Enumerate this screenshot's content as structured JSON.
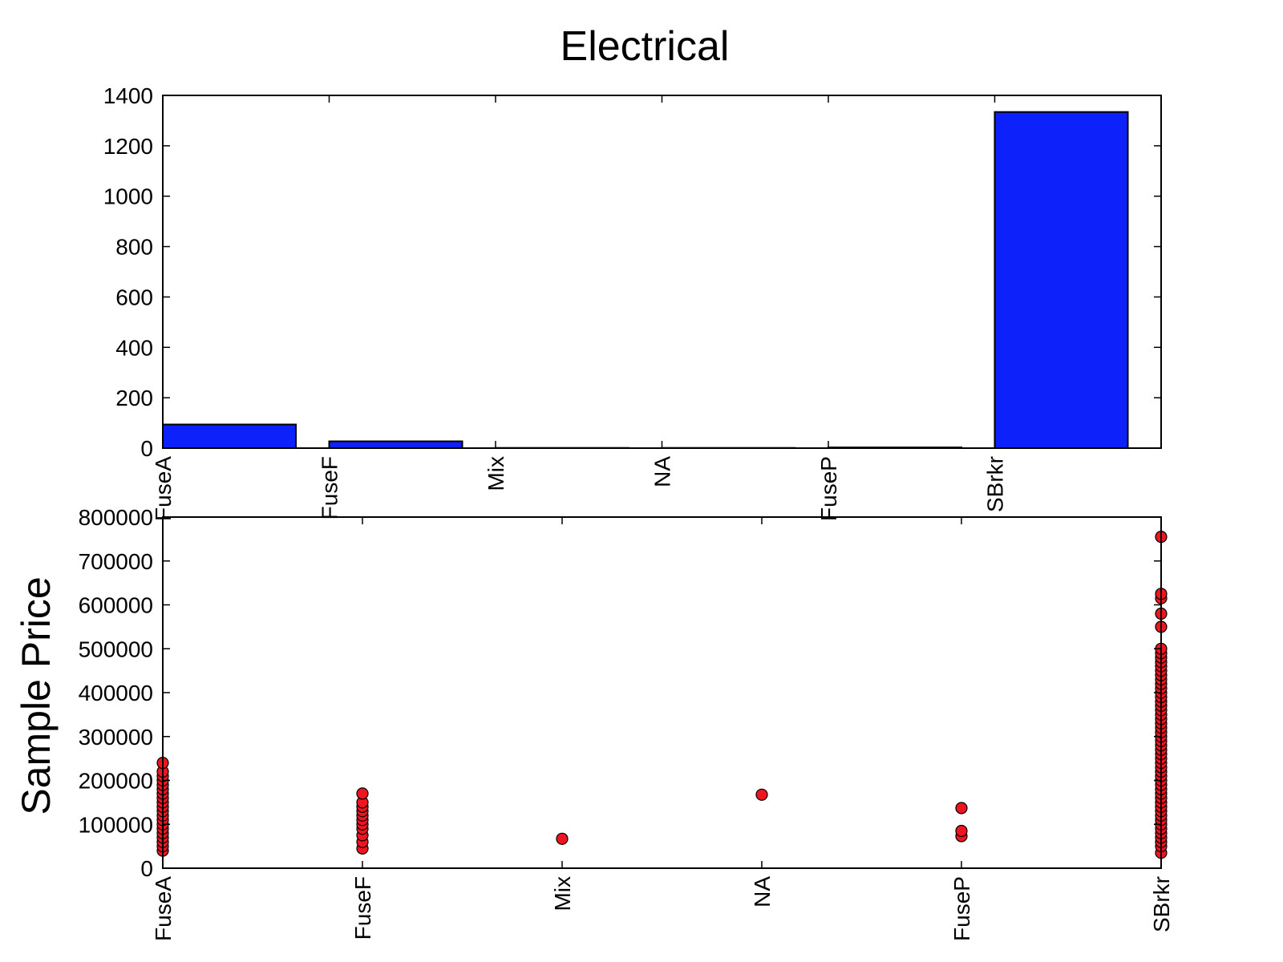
{
  "title": "Electrical",
  "colors": {
    "bar_fill": "#0d22fb",
    "point_fill": "#ef1520",
    "stroke": "#000000"
  },
  "chart_data": [
    {
      "type": "bar",
      "categories": [
        "FuseA",
        "FuseF",
        "Mix",
        "NA",
        "FuseP",
        "SBrkr"
      ],
      "values": [
        94,
        27,
        1,
        1,
        3,
        1334
      ],
      "ylim": [
        0,
        1400
      ],
      "yticks": [
        0,
        200,
        400,
        600,
        800,
        1000,
        1200,
        1400
      ],
      "ylabel": "",
      "xlabel": "",
      "grid": false
    },
    {
      "type": "scatter",
      "categories": [
        "FuseA",
        "FuseF",
        "Mix",
        "NA",
        "FuseP",
        "SBrkr"
      ],
      "ylabel": "Sample Price",
      "xlabel": "",
      "ylim": [
        0,
        800000
      ],
      "yticks": [
        0,
        100000,
        200000,
        300000,
        400000,
        500000,
        600000,
        700000,
        800000
      ],
      "grid": false,
      "series": [
        {
          "values_by_category": [
            [
              40000,
              50000,
              60000,
              70000,
              80000,
              90000,
              100000,
              110000,
              120000,
              130000,
              140000,
              150000,
              160000,
              170000,
              180000,
              190000,
              200000,
              210000,
              220000,
              240000
            ],
            [
              45000,
              60000,
              75000,
              90000,
              100000,
              110000,
              120000,
              130000,
              140000,
              150000,
              170000
            ],
            [
              67000
            ],
            [
              167500
            ],
            [
              73000,
              85000,
              137000
            ],
            [
              35000,
              50000,
              60000,
              70000,
              80000,
              90000,
              100000,
              110000,
              120000,
              130000,
              140000,
              150000,
              160000,
              170000,
              180000,
              190000,
              200000,
              210000,
              220000,
              230000,
              240000,
              250000,
              260000,
              270000,
              280000,
              290000,
              300000,
              310000,
              320000,
              330000,
              340000,
              350000,
              360000,
              370000,
              380000,
              390000,
              400000,
              410000,
              420000,
              430000,
              440000,
              450000,
              460000,
              470000,
              480000,
              490000,
              500000,
              550000,
              580000,
              615000,
              625000,
              755000
            ]
          ]
        }
      ]
    }
  ]
}
